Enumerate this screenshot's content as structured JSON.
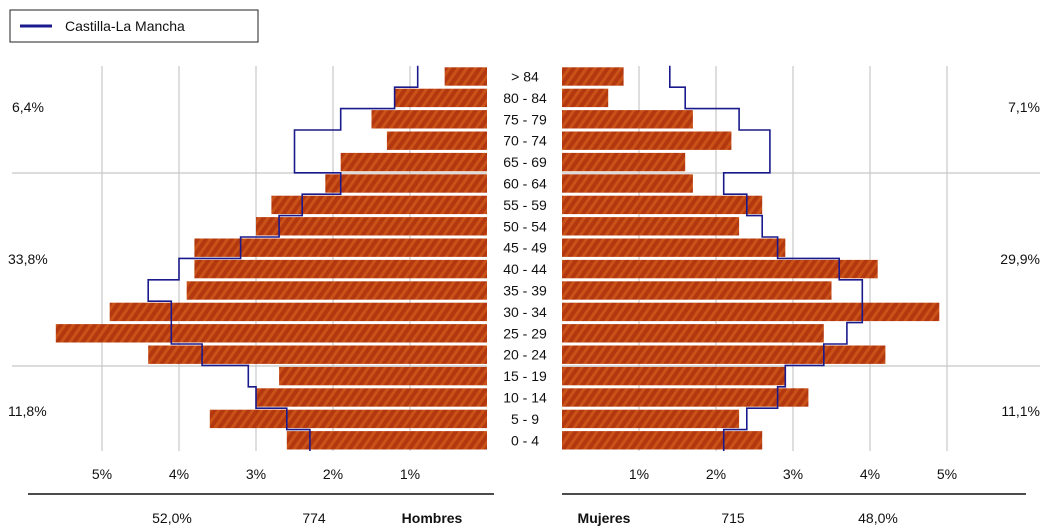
{
  "chart_data": {
    "type": "bar",
    "subtype": "population-pyramid",
    "legend": {
      "label": "Castilla-La Mancha",
      "line_color": "#1a1a8c",
      "position": "top-left"
    },
    "bar_color": "#b83a14",
    "grid": true,
    "categories": [
      "0 - 4",
      "5 - 9",
      "10 - 14",
      "15 - 19",
      "20 - 24",
      "25 - 29",
      "30 - 34",
      "35 - 39",
      "40 - 44",
      "45 - 49",
      "50 - 54",
      "55 - 59",
      "60 - 64",
      "65 - 69",
      "70 - 74",
      "75 - 79",
      "80 - 84",
      "> 84"
    ],
    "series": [
      {
        "name": "Hombres",
        "side": "left",
        "values": [
          2.6,
          3.6,
          3.0,
          2.7,
          4.4,
          5.6,
          4.9,
          3.9,
          3.8,
          3.8,
          3.0,
          2.8,
          2.1,
          1.9,
          1.3,
          1.5,
          1.2,
          0.55
        ]
      },
      {
        "name": "Mujeres",
        "side": "right",
        "values": [
          2.6,
          2.3,
          3.2,
          2.9,
          4.2,
          3.4,
          4.9,
          3.5,
          4.1,
          2.9,
          2.3,
          2.6,
          1.7,
          1.6,
          2.2,
          1.7,
          0.6,
          0.8
        ]
      },
      {
        "name": "Castilla-La Mancha",
        "kind": "line",
        "side": "left",
        "values": [
          2.3,
          2.6,
          3.0,
          3.1,
          3.7,
          4.1,
          4.1,
          4.4,
          4.0,
          3.2,
          2.7,
          2.4,
          1.9,
          2.5,
          2.5,
          1.9,
          1.2,
          0.9
        ]
      },
      {
        "name": "Castilla-La Mancha",
        "kind": "line",
        "side": "right",
        "values": [
          2.1,
          2.4,
          2.8,
          2.9,
          3.4,
          3.7,
          3.9,
          3.9,
          3.6,
          2.8,
          2.6,
          2.4,
          2.1,
          2.7,
          2.7,
          2.3,
          1.6,
          1.4
        ]
      }
    ],
    "xlim": [
      0,
      6
    ],
    "x_ticks_left": [
      "5%",
      "4%",
      "3%",
      "2%",
      "1%"
    ],
    "x_ticks_right": [
      "1%",
      "2%",
      "3%",
      "4%",
      "5%"
    ],
    "group_percent_labels": {
      "left": {
        "old": "6,4%",
        "middle": "33,8%",
        "young": "11,8%"
      },
      "right": {
        "old": "7,1%",
        "middle": "29,9%",
        "young": "11,1%"
      }
    },
    "footer": {
      "left": {
        "percent": "52,0%",
        "count": "774",
        "label": "Hombres"
      },
      "right": {
        "label": "Mujeres",
        "count": "715",
        "percent": "48,0%"
      }
    }
  }
}
